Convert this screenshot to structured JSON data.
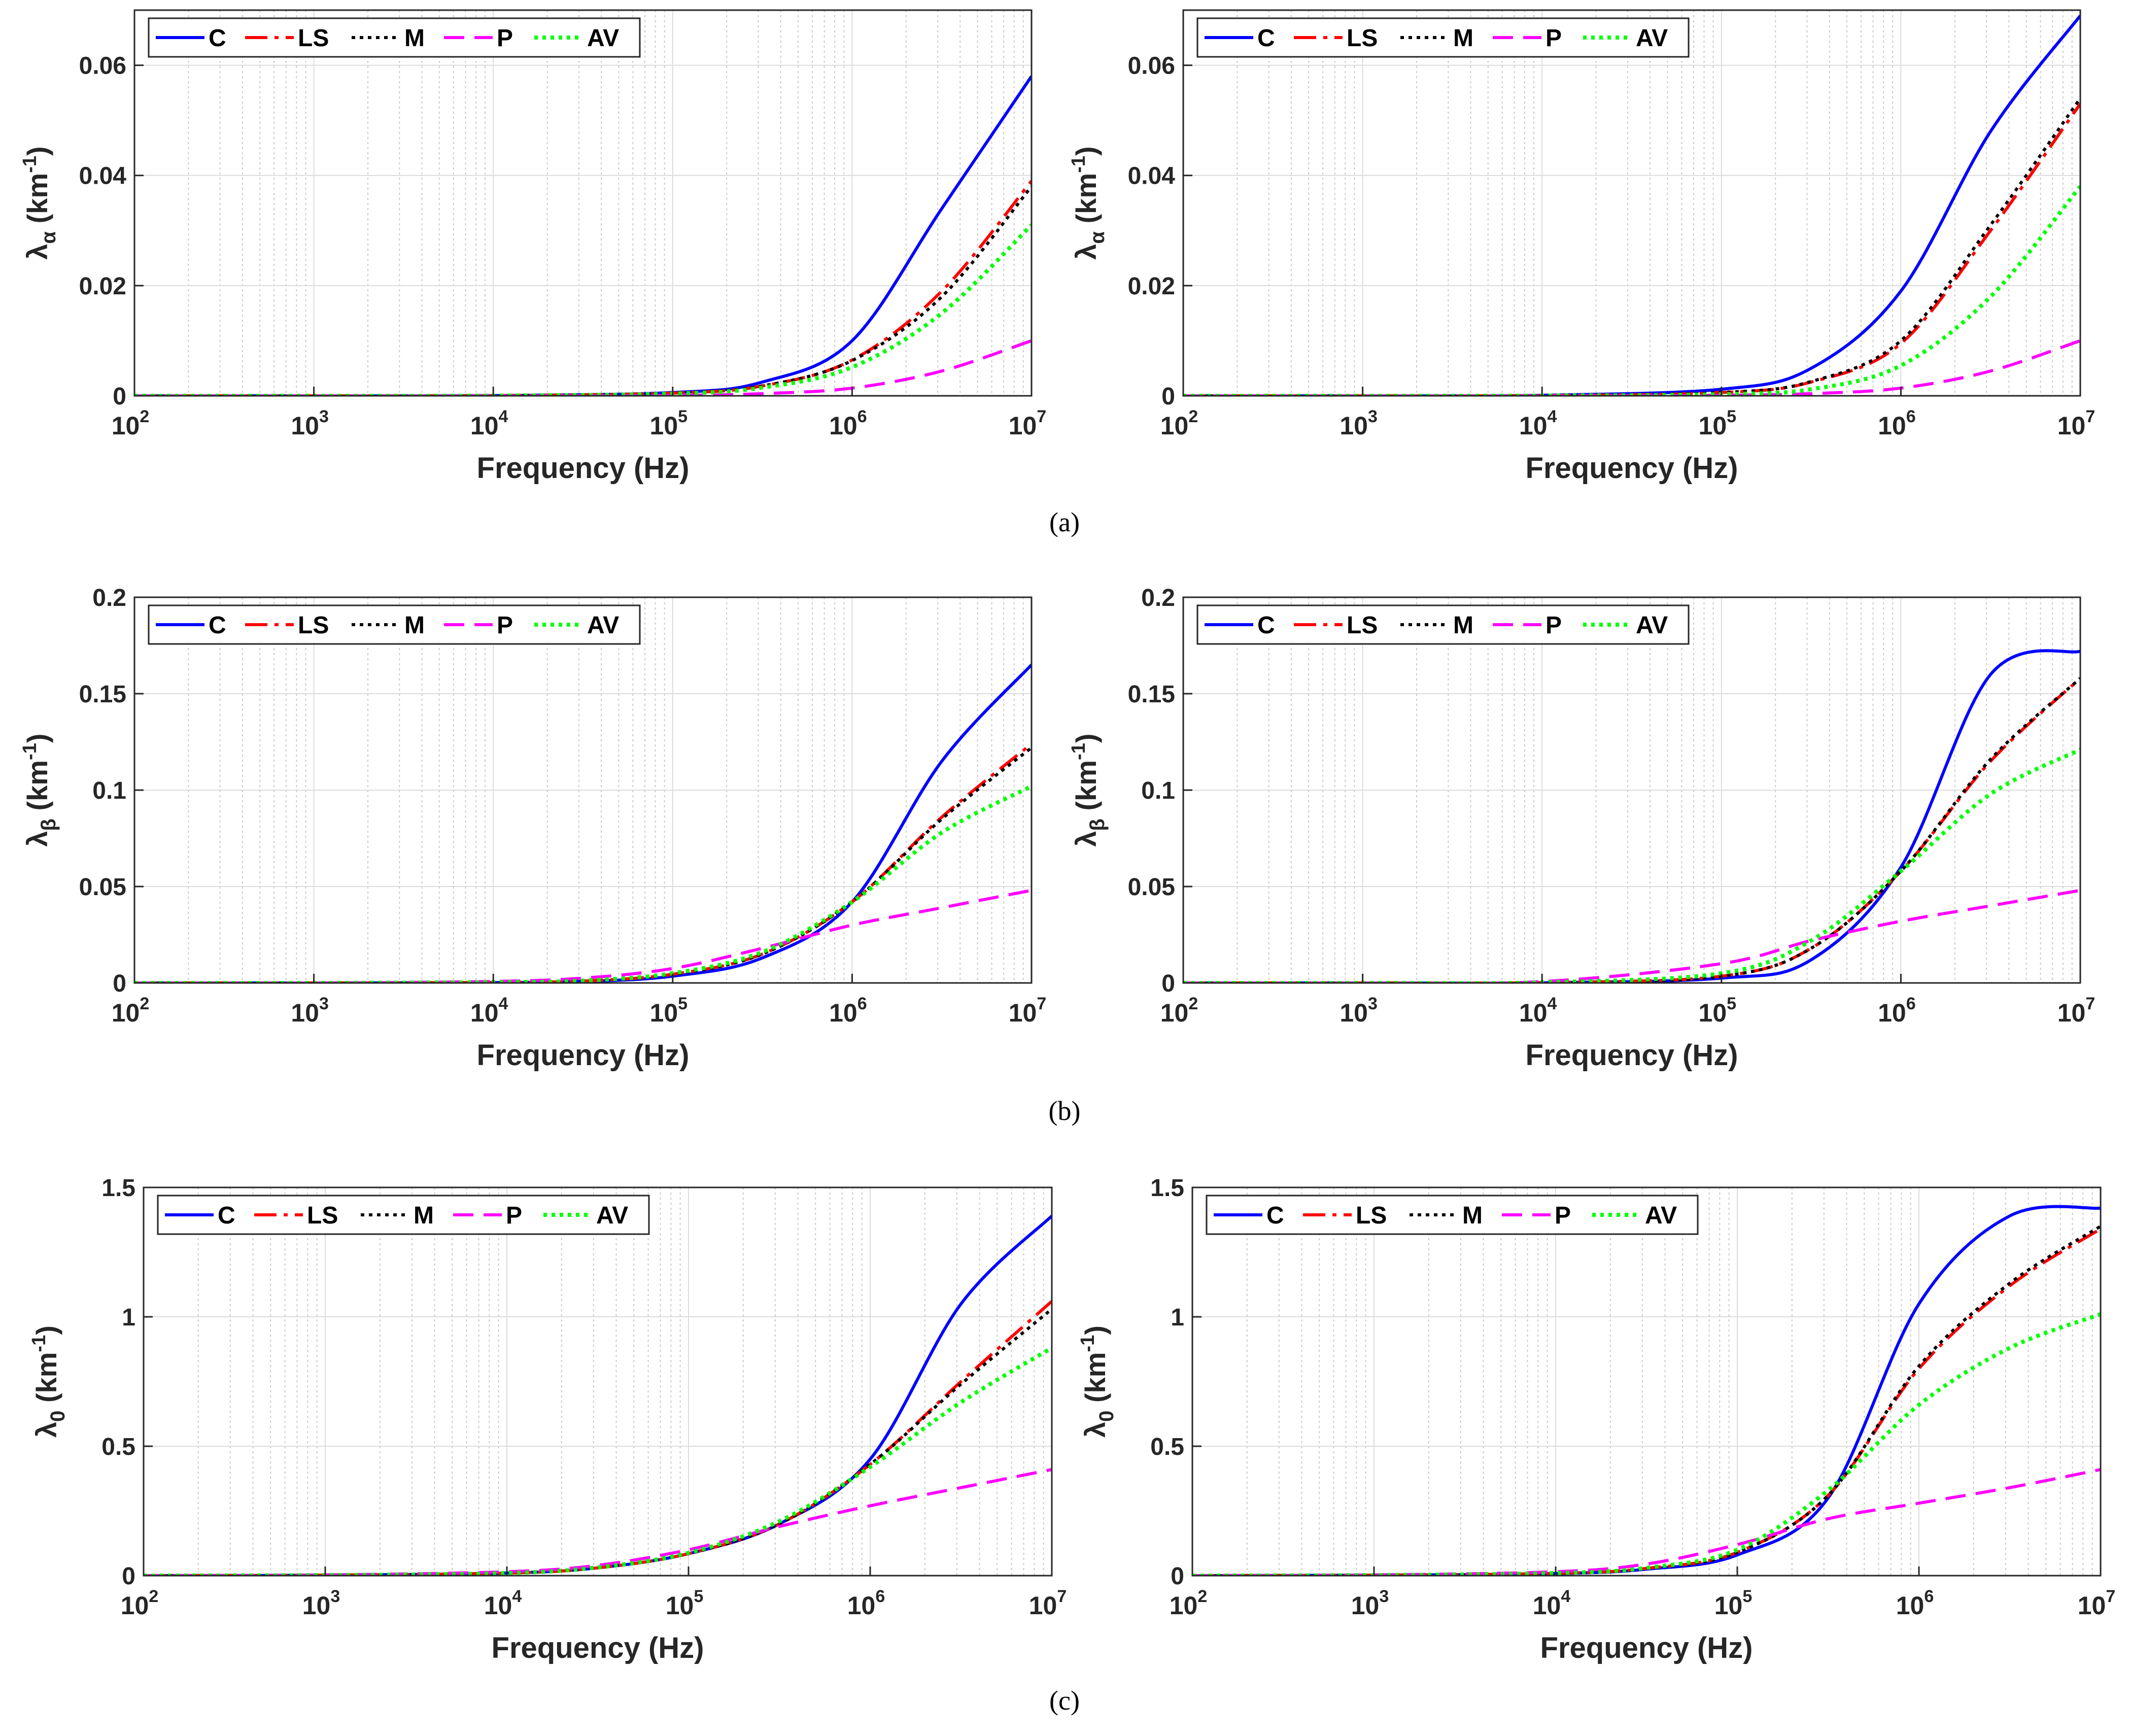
{
  "figure": {
    "subfigure_labels": [
      "(a)",
      "(b)",
      "(c)"
    ]
  },
  "legend_entries": [
    "C",
    "LS",
    "M",
    "P",
    "AV"
  ],
  "series_styles": [
    {
      "name": "C",
      "color": "#0000ff",
      "dash": "solid"
    },
    {
      "name": "LS",
      "color": "#ff0000",
      "dash": "dashdot"
    },
    {
      "name": "M",
      "color": "#000000",
      "dash": "dotted"
    },
    {
      "name": "P",
      "color": "#ff00ff",
      "dash": "dashed"
    },
    {
      "name": "AV",
      "color": "#00ff00",
      "dash": "dotted"
    }
  ],
  "chart_data": [
    {
      "id": "a-left",
      "type": "line",
      "row": 0,
      "col": 0,
      "xlabel": "Frequency (Hz)",
      "ylabel": "λα (km-1)",
      "ylabel_symbol": "λ",
      "ylabel_sub": "α",
      "ylabel_unit": " (km",
      "ylabel_sup": "-1",
      "ylabel_close": ")",
      "xscale": "log",
      "xlim": [
        100,
        10000000
      ],
      "xticks": [
        {
          "base": "10",
          "exp": "2"
        },
        {
          "base": "10",
          "exp": "3"
        },
        {
          "base": "10",
          "exp": "4"
        },
        {
          "base": "10",
          "exp": "5"
        },
        {
          "base": "10",
          "exp": "6"
        },
        {
          "base": "10",
          "exp": "7"
        }
      ],
      "ylim": [
        0,
        0.07
      ],
      "yticks": [
        0,
        0.02,
        0.04,
        0.06
      ],
      "ytick_labels": [
        "0",
        "0.02",
        "0.04",
        "0.06"
      ],
      "grid": true,
      "legend_position": "top-left",
      "x": [
        100,
        1000,
        10000,
        100000,
        316228,
        1000000,
        3162278,
        10000000
      ],
      "series": [
        {
          "name": "C",
          "values": [
            0,
            0,
            5e-05,
            0.0006,
            0.0025,
            0.01,
            0.034,
            0.058
          ]
        },
        {
          "name": "LS",
          "values": [
            0,
            0,
            4e-05,
            0.0005,
            0.0018,
            0.0065,
            0.019,
            0.039
          ]
        },
        {
          "name": "M",
          "values": [
            0,
            0,
            4e-05,
            0.0005,
            0.0018,
            0.0064,
            0.018,
            0.038
          ]
        },
        {
          "name": "P",
          "values": [
            0,
            0,
            1e-05,
            0.0001,
            0.0004,
            0.0014,
            0.0045,
            0.01
          ]
        },
        {
          "name": "AV",
          "values": [
            0,
            0,
            3e-05,
            0.0004,
            0.0015,
            0.0052,
            0.015,
            0.031
          ]
        }
      ]
    },
    {
      "id": "a-right",
      "type": "line",
      "row": 0,
      "col": 1,
      "xlabel": "Frequency (Hz)",
      "ylabel": "λα (km-1)",
      "ylabel_symbol": "λ",
      "ylabel_sub": "α",
      "ylabel_unit": " (km",
      "ylabel_sup": "-1",
      "ylabel_close": ")",
      "xscale": "log",
      "xlim": [
        100,
        10000000
      ],
      "xticks": [
        {
          "base": "10",
          "exp": "2"
        },
        {
          "base": "10",
          "exp": "3"
        },
        {
          "base": "10",
          "exp": "4"
        },
        {
          "base": "10",
          "exp": "5"
        },
        {
          "base": "10",
          "exp": "6"
        },
        {
          "base": "10",
          "exp": "7"
        }
      ],
      "ylim": [
        0,
        0.07
      ],
      "yticks": [
        0,
        0.02,
        0.04,
        0.06
      ],
      "ytick_labels": [
        "0",
        "0.02",
        "0.04",
        "0.06"
      ],
      "grid": true,
      "legend_position": "top-left",
      "x": [
        100,
        1000,
        10000,
        100000,
        316228,
        1000000,
        3162278,
        10000000
      ],
      "series": [
        {
          "name": "C",
          "values": [
            0,
            0,
            0.0001,
            0.0012,
            0.005,
            0.019,
            0.048,
            0.069
          ]
        },
        {
          "name": "LS",
          "values": [
            0,
            0,
            5e-05,
            0.0006,
            0.0025,
            0.0095,
            0.03,
            0.053
          ]
        },
        {
          "name": "M",
          "values": [
            0,
            0,
            5e-05,
            0.0006,
            0.0026,
            0.01,
            0.031,
            0.054
          ]
        },
        {
          "name": "P",
          "values": [
            0,
            0,
            1e-05,
            0.0001,
            0.0004,
            0.0014,
            0.0045,
            0.01
          ]
        },
        {
          "name": "AV",
          "values": [
            0,
            0,
            3e-05,
            0.0003,
            0.0012,
            0.0055,
            0.018,
            0.038
          ]
        }
      ]
    },
    {
      "id": "b-left",
      "type": "line",
      "row": 1,
      "col": 0,
      "xlabel": "Frequency (Hz)",
      "ylabel": "λβ (km-1)",
      "ylabel_symbol": "λ",
      "ylabel_sub": "β",
      "ylabel_unit": " (km",
      "ylabel_sup": "-1",
      "ylabel_close": ")",
      "xscale": "log",
      "xlim": [
        100,
        10000000
      ],
      "xticks": [
        {
          "base": "10",
          "exp": "2"
        },
        {
          "base": "10",
          "exp": "3"
        },
        {
          "base": "10",
          "exp": "4"
        },
        {
          "base": "10",
          "exp": "5"
        },
        {
          "base": "10",
          "exp": "6"
        },
        {
          "base": "10",
          "exp": "7"
        }
      ],
      "ylim": [
        0,
        0.2
      ],
      "yticks": [
        0,
        0.05,
        0.1,
        0.15,
        0.2
      ],
      "ytick_labels": [
        "0",
        "0.05",
        "0.1",
        "0.15",
        "0.2"
      ],
      "grid": true,
      "legend_position": "top-left",
      "x": [
        100,
        1000,
        10000,
        31623,
        100000,
        316228,
        1000000,
        3162278,
        10000000
      ],
      "series": [
        {
          "name": "C",
          "values": [
            0,
            0,
            0.0002,
            0.0008,
            0.0035,
            0.013,
            0.042,
            0.115,
            0.165
          ]
        },
        {
          "name": "LS",
          "values": [
            0,
            0,
            0.0003,
            0.001,
            0.0045,
            0.015,
            0.042,
            0.086,
            0.124
          ]
        },
        {
          "name": "M",
          "values": [
            0,
            0,
            0.0003,
            0.001,
            0.0045,
            0.015,
            0.042,
            0.085,
            0.122
          ]
        },
        {
          "name": "P",
          "values": [
            0,
            0,
            0.0008,
            0.0025,
            0.0075,
            0.018,
            0.03,
            0.039,
            0.048
          ]
        },
        {
          "name": "AV",
          "values": [
            0,
            0,
            0.0004,
            0.0012,
            0.005,
            0.016,
            0.042,
            0.078,
            0.102
          ]
        }
      ]
    },
    {
      "id": "b-right",
      "type": "line",
      "row": 1,
      "col": 1,
      "xlabel": "Frequency (Hz)",
      "ylabel": "λβ (km-1)",
      "ylabel_symbol": "λ",
      "ylabel_sub": "β",
      "ylabel_unit": " (km",
      "ylabel_sup": "-1",
      "ylabel_close": ")",
      "xscale": "log",
      "xlim": [
        100,
        10000000
      ],
      "xticks": [
        {
          "base": "10",
          "exp": "2"
        },
        {
          "base": "10",
          "exp": "3"
        },
        {
          "base": "10",
          "exp": "4"
        },
        {
          "base": "10",
          "exp": "5"
        },
        {
          "base": "10",
          "exp": "6"
        },
        {
          "base": "10",
          "exp": "7"
        }
      ],
      "ylim": [
        0,
        0.2
      ],
      "yticks": [
        0,
        0.05,
        0.1,
        0.15,
        0.2
      ],
      "ytick_labels": [
        "0",
        "0.05",
        "0.1",
        "0.15",
        "0.2"
      ],
      "grid": true,
      "legend_position": "top-left",
      "x": [
        100,
        1000,
        10000,
        100000,
        316228,
        1000000,
        3162278,
        10000000
      ],
      "series": [
        {
          "name": "C",
          "values": [
            0,
            0,
            0.0001,
            0.0025,
            0.012,
            0.06,
            0.16,
            0.172
          ]
        },
        {
          "name": "LS",
          "values": [
            0,
            0,
            0.0002,
            0.0035,
            0.018,
            0.058,
            0.115,
            0.158
          ]
        },
        {
          "name": "M",
          "values": [
            0,
            0,
            0.0002,
            0.0035,
            0.018,
            0.058,
            0.116,
            0.158
          ]
        },
        {
          "name": "P",
          "values": [
            0,
            0,
            0.0007,
            0.01,
            0.022,
            0.032,
            0.04,
            0.048
          ]
        },
        {
          "name": "AV",
          "values": [
            0,
            0,
            0.0003,
            0.005,
            0.022,
            0.058,
            0.098,
            0.121
          ]
        }
      ]
    },
    {
      "id": "c-left",
      "type": "line",
      "row": 2,
      "col": 0,
      "xlabel": "Frequency (Hz)",
      "ylabel": "λ0 (km-1)",
      "ylabel_symbol": "λ",
      "ylabel_sub": "0",
      "ylabel_unit": " (km",
      "ylabel_sup": "-1",
      "ylabel_close": ")",
      "xscale": "log",
      "xlim": [
        100,
        10000000
      ],
      "xticks": [
        {
          "base": "10",
          "exp": "2"
        },
        {
          "base": "10",
          "exp": "3"
        },
        {
          "base": "10",
          "exp": "4"
        },
        {
          "base": "10",
          "exp": "5"
        },
        {
          "base": "10",
          "exp": "6"
        },
        {
          "base": "10",
          "exp": "7"
        }
      ],
      "ylim": [
        0,
        1.5
      ],
      "yticks": [
        0,
        0.5,
        1,
        1.5
      ],
      "ytick_labels": [
        "0",
        "0.5",
        "1",
        "1.5"
      ],
      "grid": true,
      "legend_position": "top-left",
      "x": [
        100,
        1000,
        10000,
        31623,
        100000,
        316228,
        1000000,
        3162278,
        10000000
      ],
      "series": [
        {
          "name": "C",
          "values": [
            0,
            0.002,
            0.01,
            0.03,
            0.085,
            0.2,
            0.45,
            1.05,
            1.39
          ]
        },
        {
          "name": "LS",
          "values": [
            0,
            0.002,
            0.01,
            0.03,
            0.085,
            0.2,
            0.43,
            0.75,
            1.06
          ]
        },
        {
          "name": "M",
          "values": [
            0,
            0.002,
            0.01,
            0.03,
            0.085,
            0.2,
            0.43,
            0.74,
            1.03
          ]
        },
        {
          "name": "P",
          "values": [
            0,
            0.003,
            0.015,
            0.04,
            0.1,
            0.19,
            0.27,
            0.34,
            0.41
          ]
        },
        {
          "name": "AV",
          "values": [
            0,
            0.002,
            0.01,
            0.032,
            0.088,
            0.21,
            0.42,
            0.67,
            0.88
          ]
        }
      ]
    },
    {
      "id": "c-right",
      "type": "line",
      "row": 2,
      "col": 1,
      "xlabel": "Frequency (Hz)",
      "ylabel": "λ0 (km-1)",
      "ylabel_symbol": "λ",
      "ylabel_sub": "0",
      "ylabel_unit": " (km",
      "ylabel_sup": "-1",
      "ylabel_close": ")",
      "xscale": "log",
      "xlim": [
        100,
        10000000
      ],
      "xticks": [
        {
          "base": "10",
          "exp": "2"
        },
        {
          "base": "10",
          "exp": "3"
        },
        {
          "base": "10",
          "exp": "4"
        },
        {
          "base": "10",
          "exp": "5"
        },
        {
          "base": "10",
          "exp": "6"
        },
        {
          "base": "10",
          "exp": "7"
        }
      ],
      "ylim": [
        0,
        1.5
      ],
      "yticks": [
        0,
        0.5,
        1,
        1.5
      ],
      "ytick_labels": [
        "0",
        "0.5",
        "1",
        "1.5"
      ],
      "grid": true,
      "legend_position": "top-left",
      "x": [
        100,
        1000,
        10000,
        31623,
        100000,
        316228,
        1000000,
        3162278,
        10000000
      ],
      "series": [
        {
          "name": "C",
          "values": [
            0,
            0.002,
            0.008,
            0.025,
            0.08,
            0.3,
            1.05,
            1.39,
            1.42
          ]
        },
        {
          "name": "LS",
          "values": [
            0,
            0.002,
            0.009,
            0.028,
            0.09,
            0.31,
            0.8,
            1.12,
            1.34
          ]
        },
        {
          "name": "M",
          "values": [
            0,
            0.002,
            0.009,
            0.028,
            0.09,
            0.31,
            0.81,
            1.13,
            1.35
          ]
        },
        {
          "name": "P",
          "values": [
            0,
            0.003,
            0.015,
            0.045,
            0.12,
            0.22,
            0.28,
            0.34,
            0.41
          ]
        },
        {
          "name": "AV",
          "values": [
            0,
            0.002,
            0.01,
            0.03,
            0.1,
            0.33,
            0.66,
            0.88,
            1.01
          ]
        }
      ]
    }
  ]
}
